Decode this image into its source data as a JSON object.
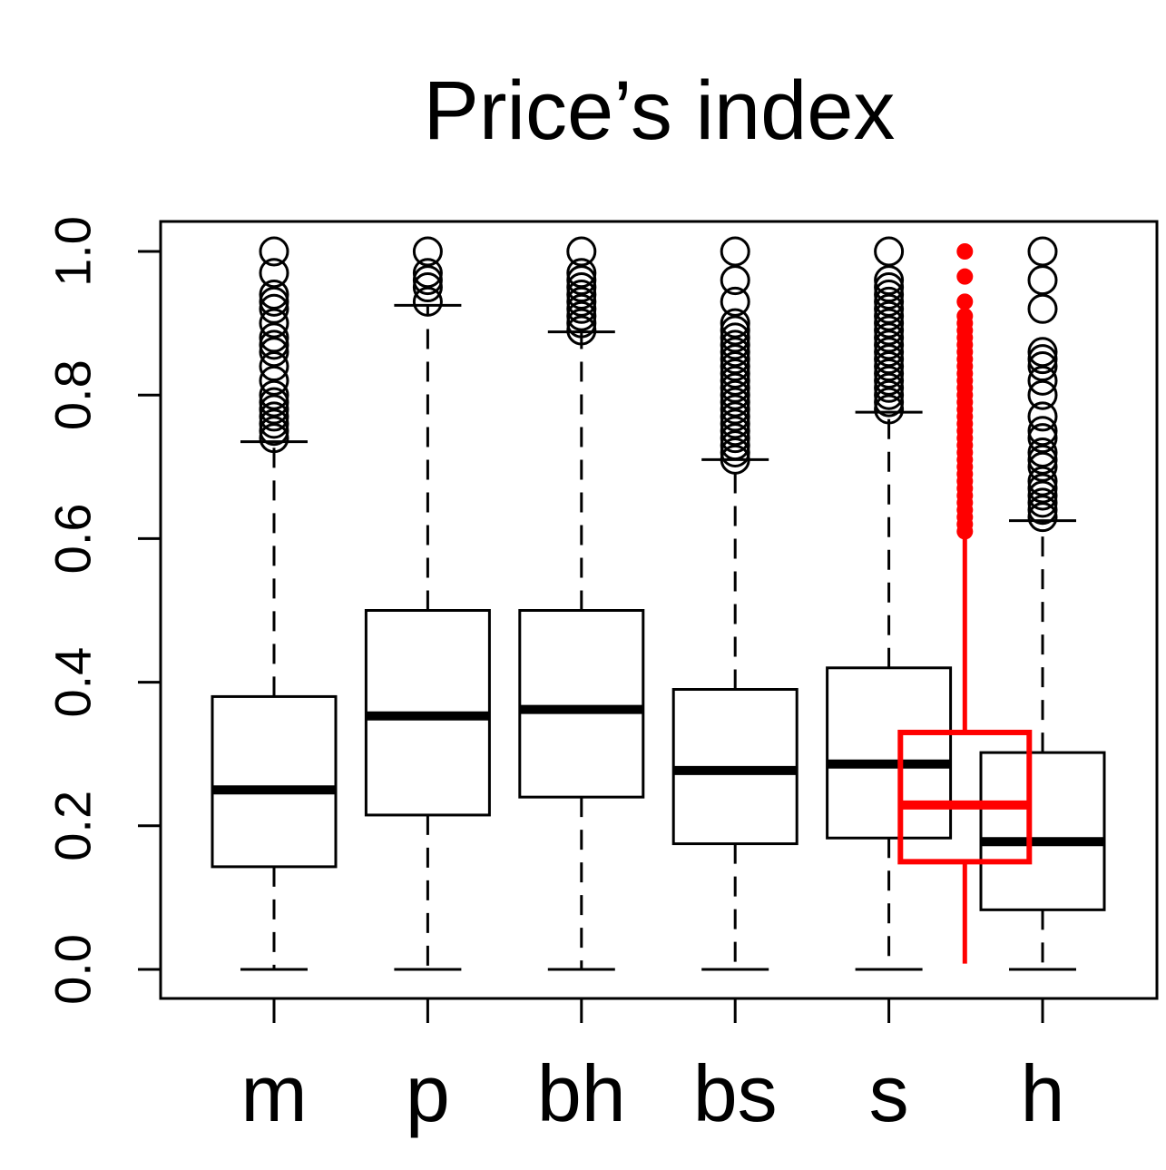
{
  "chart_data": {
    "type": "box",
    "title": "Price’s index",
    "xlabel": "",
    "ylabel": "",
    "ylim": [
      -0.04,
      1.04
    ],
    "yticks": [
      "0.0",
      "0.2",
      "0.4",
      "0.6",
      "0.8",
      "1.0"
    ],
    "categories": [
      "m",
      "p",
      "bh",
      "bs",
      "s",
      "h"
    ],
    "boxes": [
      {
        "category": "m",
        "whisker_low": 0.0,
        "q1": 0.143,
        "median": 0.25,
        "q3": 0.38,
        "whisker_high": 0.735,
        "outliers": [
          0.74,
          0.75,
          0.76,
          0.77,
          0.78,
          0.79,
          0.8,
          0.82,
          0.84,
          0.86,
          0.87,
          0.88,
          0.9,
          0.92,
          0.93,
          0.94,
          0.97,
          1.0
        ]
      },
      {
        "category": "p",
        "whisker_low": 0.0,
        "q1": 0.215,
        "median": 0.353,
        "q3": 0.5,
        "whisker_high": 0.925,
        "outliers": [
          0.93,
          0.95,
          0.96,
          0.97,
          1.0
        ]
      },
      {
        "category": "bh",
        "whisker_low": 0.0,
        "q1": 0.24,
        "median": 0.362,
        "q3": 0.5,
        "whisker_high": 0.888,
        "outliers": [
          0.89,
          0.9,
          0.91,
          0.92,
          0.93,
          0.94,
          0.95,
          0.96,
          0.97,
          1.0
        ]
      },
      {
        "category": "bs",
        "whisker_low": 0.0,
        "q1": 0.175,
        "median": 0.277,
        "q3": 0.39,
        "whisker_high": 0.71,
        "outliers": [
          0.71,
          0.72,
          0.73,
          0.74,
          0.75,
          0.76,
          0.77,
          0.78,
          0.79,
          0.8,
          0.81,
          0.82,
          0.83,
          0.84,
          0.85,
          0.86,
          0.87,
          0.88,
          0.89,
          0.9,
          0.93,
          0.96,
          1.0
        ]
      },
      {
        "category": "s",
        "whisker_low": 0.0,
        "q1": 0.183,
        "median": 0.286,
        "q3": 0.42,
        "whisker_high": 0.776,
        "outliers": [
          0.78,
          0.79,
          0.8,
          0.81,
          0.82,
          0.83,
          0.84,
          0.85,
          0.86,
          0.87,
          0.88,
          0.89,
          0.9,
          0.91,
          0.92,
          0.93,
          0.94,
          0.95,
          0.96,
          1.0
        ]
      },
      {
        "category": "h",
        "whisker_low": 0.0,
        "q1": 0.083,
        "median": 0.178,
        "q3": 0.302,
        "whisker_high": 0.625,
        "outliers": [
          0.63,
          0.64,
          0.65,
          0.66,
          0.67,
          0.68,
          0.7,
          0.71,
          0.72,
          0.74,
          0.75,
          0.77,
          0.8,
          0.82,
          0.84,
          0.85,
          0.86,
          0.92,
          0.96,
          1.0
        ]
      }
    ],
    "highlight": {
      "color": "#ff0000",
      "position_between": [
        "s",
        "h"
      ],
      "whisker_low": 0.008,
      "q1": 0.15,
      "median": 0.229,
      "q3": 0.33,
      "whisker_high": 0.6,
      "outliers": [
        0.61,
        0.62,
        0.63,
        0.64,
        0.65,
        0.66,
        0.67,
        0.68,
        0.69,
        0.7,
        0.71,
        0.72,
        0.73,
        0.74,
        0.75,
        0.76,
        0.77,
        0.78,
        0.79,
        0.8,
        0.81,
        0.82,
        0.83,
        0.84,
        0.85,
        0.86,
        0.87,
        0.88,
        0.89,
        0.9,
        0.91,
        0.93,
        0.965,
        1.0
      ]
    },
    "grid": false,
    "legend": "none"
  }
}
